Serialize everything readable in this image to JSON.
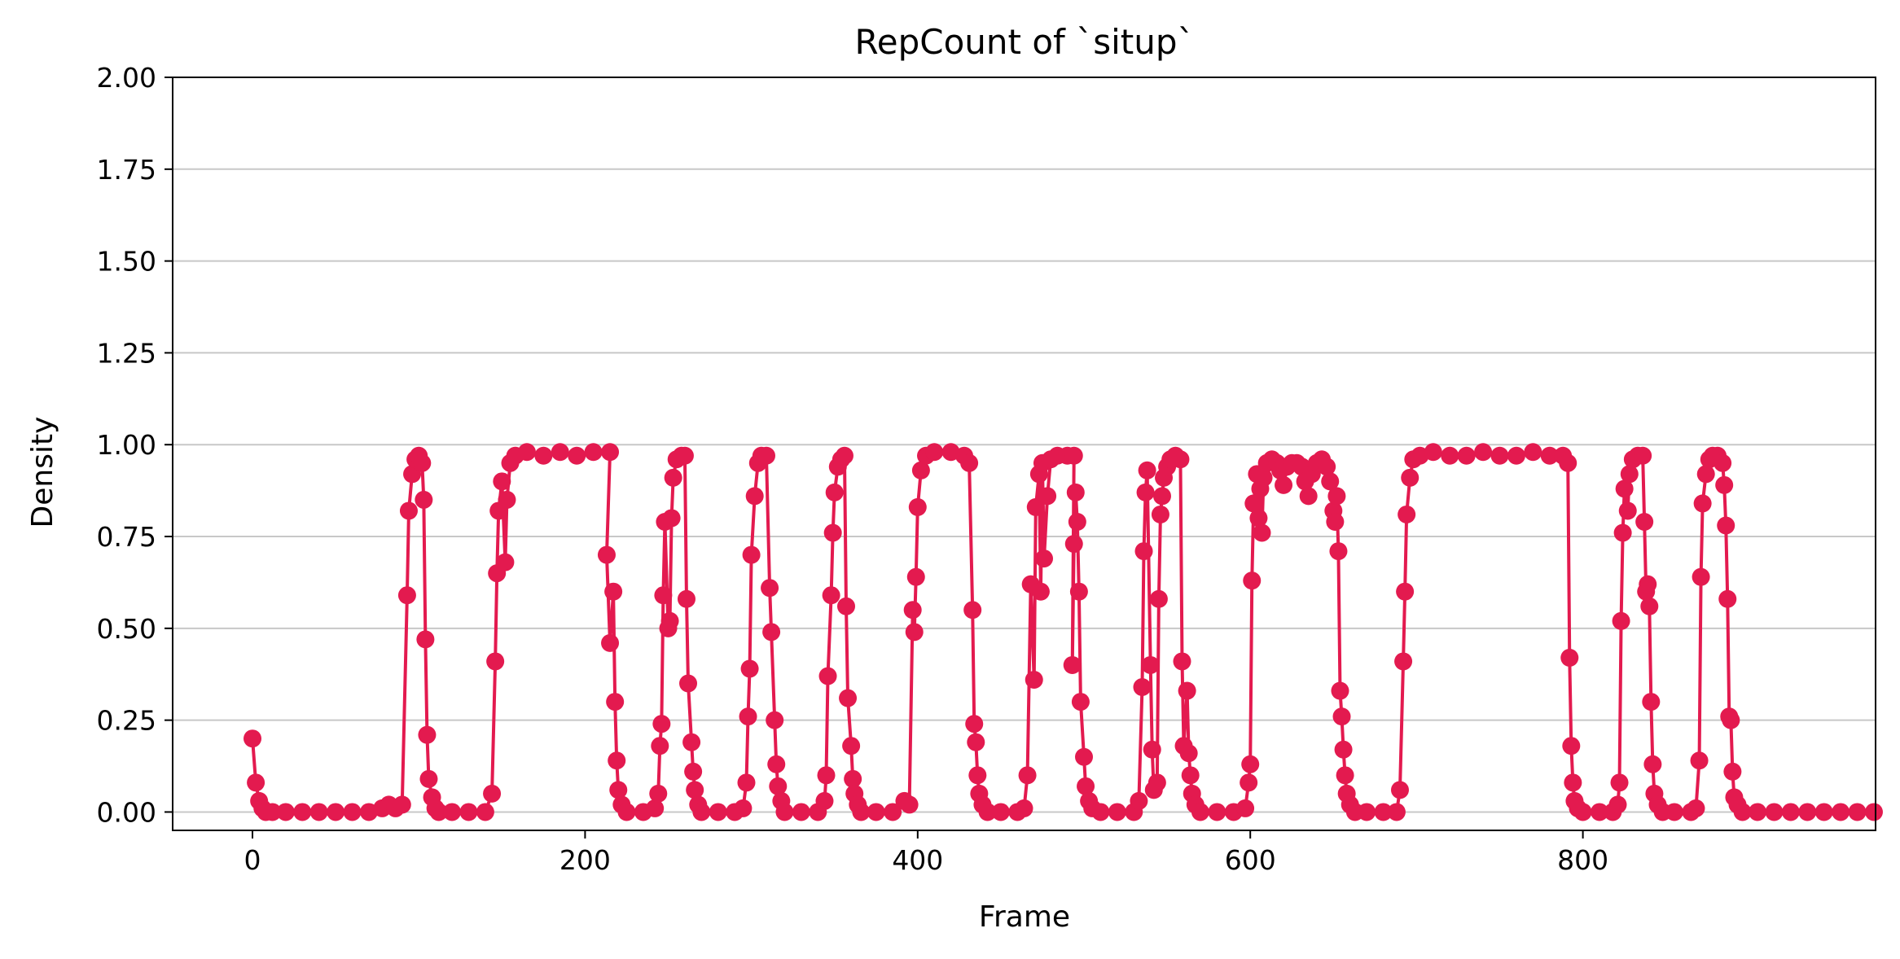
{
  "chart_data": {
    "type": "line",
    "title": "RepCount of `situp`",
    "xlabel": "Frame",
    "ylabel": "Density",
    "xlim": [
      -48,
      976
    ],
    "ylim": [
      -0.05,
      2.0
    ],
    "x_ticks": [
      0,
      200,
      400,
      600,
      800
    ],
    "x_tick_labels": [
      "0",
      "200",
      "400",
      "600",
      "800"
    ],
    "y_ticks": [
      0.0,
      0.25,
      0.5,
      0.75,
      1.0,
      1.25,
      1.5,
      1.75,
      2.0
    ],
    "y_tick_labels": [
      "0.00",
      "0.25",
      "0.50",
      "0.75",
      "1.00",
      "1.25",
      "1.50",
      "1.75",
      "2.00"
    ],
    "grid": "y",
    "legend": "none",
    "series": [
      {
        "color": "#e31a4f",
        "marker": "circle",
        "points": [
          [
            0,
            0.2
          ],
          [
            2,
            0.08
          ],
          [
            4,
            0.03
          ],
          [
            6,
            0.01
          ],
          [
            8,
            0.0
          ],
          [
            12,
            0.0
          ],
          [
            20,
            0.0
          ],
          [
            30,
            0.0
          ],
          [
            40,
            0.0
          ],
          [
            50,
            0.0
          ],
          [
            60,
            0.0
          ],
          [
            70,
            0.0
          ],
          [
            78,
            0.01
          ],
          [
            82,
            0.02
          ],
          [
            86,
            0.01
          ],
          [
            90,
            0.02
          ],
          [
            93,
            0.59
          ],
          [
            94,
            0.82
          ],
          [
            96,
            0.92
          ],
          [
            98,
            0.96
          ],
          [
            100,
            0.97
          ],
          [
            102,
            0.95
          ],
          [
            103,
            0.85
          ],
          [
            104,
            0.47
          ],
          [
            105,
            0.21
          ],
          [
            106,
            0.09
          ],
          [
            108,
            0.04
          ],
          [
            110,
            0.01
          ],
          [
            112,
            0.0
          ],
          [
            120,
            0.0
          ],
          [
            130,
            0.0
          ],
          [
            140,
            0.0
          ],
          [
            144,
            0.05
          ],
          [
            146,
            0.41
          ],
          [
            147,
            0.65
          ],
          [
            148,
            0.82
          ],
          [
            150,
            0.9
          ],
          [
            152,
            0.68
          ],
          [
            153,
            0.85
          ],
          [
            155,
            0.95
          ],
          [
            158,
            0.97
          ],
          [
            165,
            0.98
          ],
          [
            175,
            0.97
          ],
          [
            185,
            0.98
          ],
          [
            195,
            0.97
          ],
          [
            205,
            0.98
          ],
          [
            215,
            0.98
          ],
          [
            213,
            0.7
          ],
          [
            215,
            0.46
          ],
          [
            217,
            0.6
          ],
          [
            218,
            0.3
          ],
          [
            219,
            0.14
          ],
          [
            220,
            0.06
          ],
          [
            222,
            0.02
          ],
          [
            225,
            0.0
          ],
          [
            235,
            0.0
          ],
          [
            242,
            0.01
          ],
          [
            244,
            0.05
          ],
          [
            245,
            0.18
          ],
          [
            246,
            0.24
          ],
          [
            247,
            0.59
          ],
          [
            248,
            0.79
          ],
          [
            250,
            0.5
          ],
          [
            251,
            0.52
          ],
          [
            252,
            0.8
          ],
          [
            253,
            0.91
          ],
          [
            255,
            0.96
          ],
          [
            258,
            0.97
          ],
          [
            260,
            0.97
          ],
          [
            261,
            0.58
          ],
          [
            262,
            0.35
          ],
          [
            264,
            0.19
          ],
          [
            265,
            0.11
          ],
          [
            266,
            0.06
          ],
          [
            268,
            0.02
          ],
          [
            270,
            0.0
          ],
          [
            280,
            0.0
          ],
          [
            290,
            0.0
          ],
          [
            295,
            0.01
          ],
          [
            297,
            0.08
          ],
          [
            298,
            0.26
          ],
          [
            299,
            0.39
          ],
          [
            300,
            0.7
          ],
          [
            302,
            0.86
          ],
          [
            304,
            0.95
          ],
          [
            306,
            0.97
          ],
          [
            309,
            0.97
          ],
          [
            311,
            0.61
          ],
          [
            312,
            0.49
          ],
          [
            314,
            0.25
          ],
          [
            315,
            0.13
          ],
          [
            316,
            0.07
          ],
          [
            318,
            0.03
          ],
          [
            320,
            0.0
          ],
          [
            330,
            0.0
          ],
          [
            340,
            0.0
          ],
          [
            344,
            0.03
          ],
          [
            345,
            0.1
          ],
          [
            346,
            0.37
          ],
          [
            348,
            0.59
          ],
          [
            349,
            0.76
          ],
          [
            350,
            0.87
          ],
          [
            352,
            0.94
          ],
          [
            354,
            0.96
          ],
          [
            356,
            0.97
          ],
          [
            357,
            0.56
          ],
          [
            358,
            0.31
          ],
          [
            360,
            0.18
          ],
          [
            361,
            0.09
          ],
          [
            362,
            0.05
          ],
          [
            364,
            0.02
          ],
          [
            366,
            0.0
          ],
          [
            375,
            0.0
          ],
          [
            385,
            0.0
          ],
          [
            392,
            0.03
          ],
          [
            395,
            0.02
          ],
          [
            397,
            0.55
          ],
          [
            398,
            0.49
          ],
          [
            399,
            0.64
          ],
          [
            400,
            0.83
          ],
          [
            402,
            0.93
          ],
          [
            405,
            0.97
          ],
          [
            410,
            0.98
          ],
          [
            420,
            0.98
          ],
          [
            428,
            0.97
          ],
          [
            431,
            0.95
          ],
          [
            433,
            0.55
          ],
          [
            434,
            0.24
          ],
          [
            435,
            0.19
          ],
          [
            436,
            0.1
          ],
          [
            437,
            0.05
          ],
          [
            439,
            0.02
          ],
          [
            442,
            0.0
          ],
          [
            450,
            0.0
          ],
          [
            460,
            0.0
          ],
          [
            464,
            0.01
          ],
          [
            466,
            0.1
          ],
          [
            468,
            0.62
          ],
          [
            470,
            0.36
          ],
          [
            471,
            0.83
          ],
          [
            473,
            0.92
          ],
          [
            474,
            0.6
          ],
          [
            475,
            0.95
          ],
          [
            476,
            0.69
          ],
          [
            478,
            0.86
          ],
          [
            480,
            0.96
          ],
          [
            484,
            0.97
          ],
          [
            490,
            0.97
          ],
          [
            494,
            0.97
          ],
          [
            493,
            0.4
          ],
          [
            494,
            0.73
          ],
          [
            495,
            0.87
          ],
          [
            496,
            0.79
          ],
          [
            497,
            0.6
          ],
          [
            498,
            0.3
          ],
          [
            500,
            0.15
          ],
          [
            501,
            0.07
          ],
          [
            503,
            0.03
          ],
          [
            505,
            0.01
          ],
          [
            510,
            0.0
          ],
          [
            520,
            0.0
          ],
          [
            530,
            0.0
          ],
          [
            533,
            0.03
          ],
          [
            535,
            0.34
          ],
          [
            536,
            0.71
          ],
          [
            537,
            0.87
          ],
          [
            538,
            0.93
          ],
          [
            540,
            0.4
          ],
          [
            541,
            0.17
          ],
          [
            542,
            0.06
          ],
          [
            544,
            0.08
          ],
          [
            545,
            0.58
          ],
          [
            546,
            0.81
          ],
          [
            547,
            0.86
          ],
          [
            548,
            0.91
          ],
          [
            550,
            0.94
          ],
          [
            552,
            0.96
          ],
          [
            555,
            0.97
          ],
          [
            558,
            0.96
          ],
          [
            559,
            0.41
          ],
          [
            560,
            0.18
          ],
          [
            562,
            0.33
          ],
          [
            563,
            0.16
          ],
          [
            564,
            0.1
          ],
          [
            565,
            0.05
          ],
          [
            567,
            0.02
          ],
          [
            570,
            0.0
          ],
          [
            580,
            0.0
          ],
          [
            590,
            0.0
          ],
          [
            597,
            0.01
          ],
          [
            599,
            0.08
          ],
          [
            600,
            0.13
          ],
          [
            601,
            0.63
          ],
          [
            602,
            0.84
          ],
          [
            604,
            0.92
          ],
          [
            605,
            0.8
          ],
          [
            606,
            0.88
          ],
          [
            607,
            0.76
          ],
          [
            608,
            0.91
          ],
          [
            610,
            0.95
          ],
          [
            613,
            0.96
          ],
          [
            616,
            0.95
          ],
          [
            618,
            0.93
          ],
          [
            620,
            0.89
          ],
          [
            622,
            0.94
          ],
          [
            625,
            0.95
          ],
          [
            628,
            0.95
          ],
          [
            631,
            0.94
          ],
          [
            633,
            0.9
          ],
          [
            635,
            0.86
          ],
          [
            637,
            0.92
          ],
          [
            640,
            0.95
          ],
          [
            643,
            0.96
          ],
          [
            646,
            0.94
          ],
          [
            648,
            0.9
          ],
          [
            650,
            0.82
          ],
          [
            651,
            0.79
          ],
          [
            652,
            0.86
          ],
          [
            653,
            0.71
          ],
          [
            654,
            0.33
          ],
          [
            655,
            0.26
          ],
          [
            656,
            0.17
          ],
          [
            657,
            0.1
          ],
          [
            658,
            0.05
          ],
          [
            660,
            0.02
          ],
          [
            663,
            0.0
          ],
          [
            670,
            0.0
          ],
          [
            680,
            0.0
          ],
          [
            688,
            0.0
          ],
          [
            690,
            0.06
          ],
          [
            692,
            0.41
          ],
          [
            693,
            0.6
          ],
          [
            694,
            0.81
          ],
          [
            696,
            0.91
          ],
          [
            698,
            0.96
          ],
          [
            702,
            0.97
          ],
          [
            710,
            0.98
          ],
          [
            720,
            0.97
          ],
          [
            730,
            0.97
          ],
          [
            740,
            0.98
          ],
          [
            750,
            0.97
          ],
          [
            760,
            0.97
          ],
          [
            770,
            0.98
          ],
          [
            780,
            0.97
          ],
          [
            788,
            0.97
          ],
          [
            791,
            0.95
          ],
          [
            792,
            0.42
          ],
          [
            793,
            0.18
          ],
          [
            794,
            0.08
          ],
          [
            795,
            0.03
          ],
          [
            797,
            0.01
          ],
          [
            800,
            0.0
          ],
          [
            810,
            0.0
          ],
          [
            818,
            0.0
          ],
          [
            821,
            0.02
          ],
          [
            822,
            0.08
          ],
          [
            823,
            0.52
          ],
          [
            824,
            0.76
          ],
          [
            825,
            0.88
          ],
          [
            827,
            0.82
          ],
          [
            828,
            0.92
          ],
          [
            830,
            0.96
          ],
          [
            833,
            0.97
          ],
          [
            836,
            0.97
          ],
          [
            837,
            0.79
          ],
          [
            838,
            0.6
          ],
          [
            839,
            0.62
          ],
          [
            840,
            0.56
          ],
          [
            841,
            0.3
          ],
          [
            842,
            0.13
          ],
          [
            843,
            0.05
          ],
          [
            845,
            0.02
          ],
          [
            848,
            0.0
          ],
          [
            855,
            0.0
          ],
          [
            865,
            0.0
          ],
          [
            868,
            0.01
          ],
          [
            870,
            0.14
          ],
          [
            871,
            0.64
          ],
          [
            872,
            0.84
          ],
          [
            874,
            0.92
          ],
          [
            876,
            0.96
          ],
          [
            878,
            0.97
          ],
          [
            881,
            0.97
          ],
          [
            884,
            0.95
          ],
          [
            885,
            0.89
          ],
          [
            886,
            0.78
          ],
          [
            887,
            0.58
          ],
          [
            888,
            0.26
          ],
          [
            889,
            0.25
          ],
          [
            890,
            0.11
          ],
          [
            891,
            0.04
          ],
          [
            893,
            0.02
          ],
          [
            896,
            0.0
          ],
          [
            905,
            0.0
          ],
          [
            915,
            0.0
          ],
          [
            925,
            0.0
          ],
          [
            935,
            0.0
          ],
          [
            945,
            0.0
          ],
          [
            955,
            0.0
          ],
          [
            965,
            0.0
          ],
          [
            975,
            0.0
          ]
        ]
      }
    ]
  }
}
